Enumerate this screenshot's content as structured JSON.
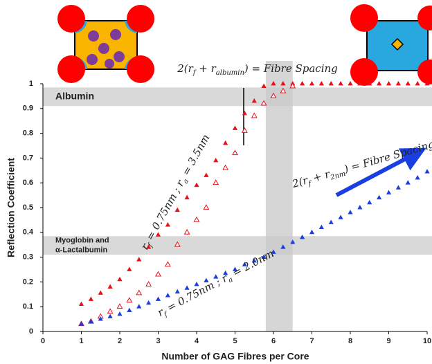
{
  "chart_data": {
    "type": "scatter",
    "xlabel": "Number of GAG Fibres per Core",
    "ylabel": "Reflection Coefficient",
    "xlim": [
      0,
      10
    ],
    "ylim": [
      0,
      1
    ],
    "xticks": [
      0,
      1,
      2,
      3,
      4,
      5,
      6,
      7,
      8,
      9,
      10
    ],
    "yticks": [
      0,
      0.1,
      0.2,
      0.3,
      0.4,
      0.5,
      0.6,
      0.7,
      0.8,
      0.9,
      1
    ],
    "x": [
      1,
      1.25,
      1.5,
      1.75,
      2,
      2.25,
      2.5,
      2.75,
      3,
      3.25,
      3.5,
      3.75,
      4,
      4.25,
      4.5,
      4.75,
      5,
      5.25,
      5.5,
      5.75,
      6,
      6.25,
      6.5,
      6.75,
      7,
      7.25,
      7.5,
      7.75,
      8,
      8.25,
      8.5,
      8.75,
      9,
      9.25,
      9.5,
      9.75,
      10
    ],
    "series": [
      {
        "color": "#e8101a",
        "filled": true,
        "values": [
          0.11,
          0.13,
          0.155,
          0.18,
          0.21,
          0.25,
          0.29,
          0.34,
          0.39,
          0.43,
          0.49,
          0.54,
          0.59,
          0.63,
          0.69,
          0.76,
          0.82,
          0.88,
          0.93,
          0.99,
          1,
          1,
          1,
          1,
          1,
          1,
          1,
          1,
          1,
          1,
          1,
          1,
          1,
          1,
          1,
          1,
          1
        ]
      },
      {
        "color": "#e8101a",
        "filled": false,
        "values": [
          0.03,
          0.04,
          0.06,
          0.08,
          0.1,
          0.125,
          0.155,
          0.19,
          0.23,
          0.27,
          0.35,
          0.4,
          0.45,
          0.5,
          0.6,
          0.66,
          0.72,
          0.81,
          0.87,
          0.92,
          0.95,
          0.97,
          0.99,
          null,
          null,
          null,
          null,
          null,
          null,
          null,
          null,
          null,
          null,
          null,
          null,
          null,
          null
        ]
      },
      {
        "color": "#1a3fe0",
        "filled": true,
        "values": [
          0.03,
          0.04,
          0.05,
          0.06,
          0.07,
          0.085,
          0.1,
          0.115,
          0.13,
          0.145,
          0.16,
          0.175,
          0.19,
          0.205,
          0.22,
          0.235,
          0.25,
          0.27,
          0.285,
          0.3,
          0.32,
          0.34,
          0.36,
          0.38,
          0.4,
          0.42,
          0.44,
          0.46,
          0.48,
          0.5,
          0.52,
          0.54,
          0.56,
          0.58,
          0.6,
          0.62,
          0.645
        ]
      }
    ],
    "bands": [
      {
        "axis": "y",
        "range": [
          0.91,
          0.985
        ],
        "label": [
          "Albumin"
        ]
      },
      {
        "axis": "y",
        "range": [
          0.31,
          0.385
        ],
        "label": [
          "Myoglobin and",
          "α-Lactalbumin"
        ]
      },
      {
        "axis": "x",
        "range": [
          5.8,
          6.5
        ]
      }
    ],
    "annotations": [
      {
        "parts": [
          "2(r",
          "f",
          " + r",
          "albumin",
          ") = Fibre Spacing"
        ]
      },
      {
        "parts": [
          "r",
          "f",
          " = 0.75nm ; r",
          "a",
          " = 3.5nm"
        ]
      },
      {
        "parts": [
          "r",
          "f",
          " = 0.75nm ; r",
          "a",
          " = 2.0nm"
        ]
      },
      {
        "parts": [
          "2(r",
          "f",
          " + r",
          "2nm",
          ") = Fibre Spacing"
        ]
      }
    ]
  }
}
